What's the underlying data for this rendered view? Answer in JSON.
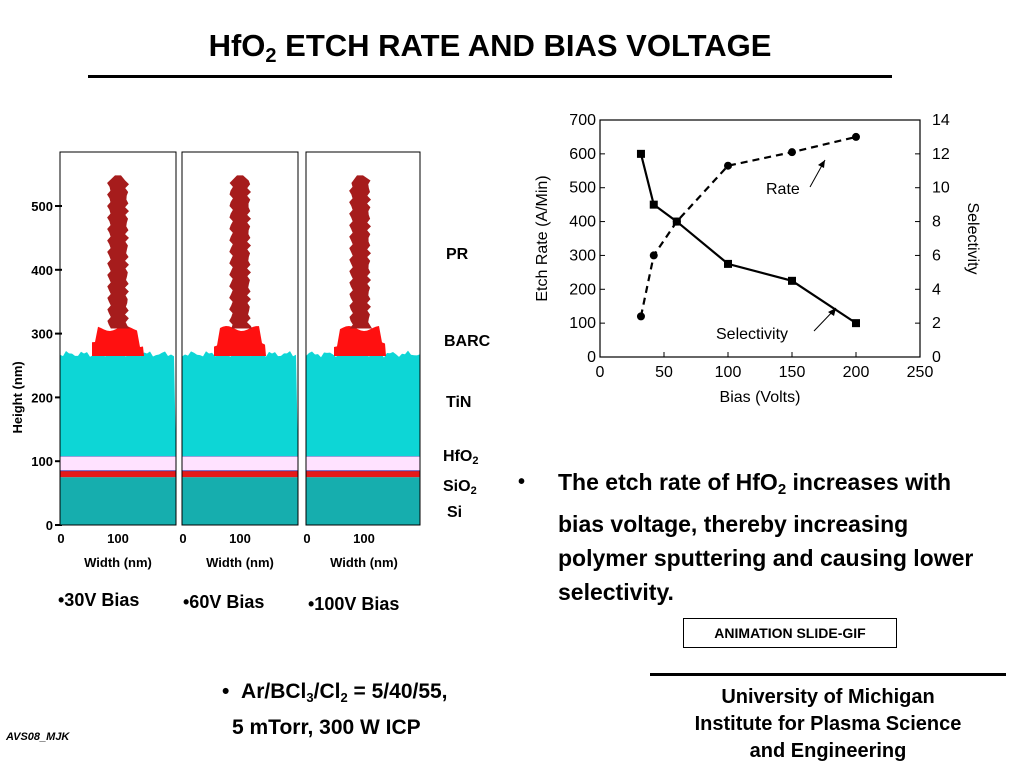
{
  "title": {
    "pre": "HfO",
    "sub": "2",
    "post": " ETCH RATE AND BIAS VOLTAGE"
  },
  "profiles": {
    "ylabel": "Height (nm)",
    "xlabel": "Width (nm)",
    "y_ticks": [
      "500",
      "400",
      "300",
      "200",
      "100",
      "0"
    ],
    "x_ticks": [
      "0",
      "100"
    ],
    "panels": [
      {
        "bias_label": "•30V Bias"
      },
      {
        "bias_label": "•60V Bias"
      },
      {
        "bias_label": "•100V Bias"
      }
    ],
    "layers": [
      {
        "label": "PR",
        "sub": ""
      },
      {
        "label": "BARC",
        "sub": ""
      },
      {
        "label": "TiN",
        "sub": ""
      },
      {
        "label": "HfO",
        "sub": "2"
      },
      {
        "label": "SiO",
        "sub": "2"
      },
      {
        "label": "Si",
        "sub": ""
      }
    ],
    "colors": {
      "pr": "#a61c1c",
      "barc": "#ff1010",
      "tin": "#0dd6d6",
      "hfo2": "#ffe2ff",
      "sio2": "#e51a1a",
      "si": "#16aeae"
    }
  },
  "chart_data": {
    "type": "line",
    "xlabel": "Bias (Volts)",
    "ylabel": "Etch Rate (A/Min)",
    "y2label": "Selectivity",
    "xlim": [
      0,
      250
    ],
    "ylim": [
      0,
      700
    ],
    "y2lim": [
      0,
      14
    ],
    "x_ticks": [
      0,
      50,
      100,
      150,
      200,
      250
    ],
    "y_ticks": [
      0,
      100,
      200,
      300,
      400,
      500,
      600,
      700
    ],
    "y2_ticks": [
      0,
      2,
      4,
      6,
      8,
      10,
      12,
      14
    ],
    "grid": false,
    "series": [
      {
        "name": "Rate",
        "axis": "left",
        "style": "dashed",
        "marker": "circle",
        "x": [
          32,
          42,
          60,
          100,
          150,
          200
        ],
        "values": [
          120,
          300,
          400,
          565,
          605,
          650
        ]
      },
      {
        "name": "Selectivity",
        "axis": "right",
        "style": "solid",
        "marker": "square",
        "x": [
          32,
          42,
          60,
          100,
          150,
          200
        ],
        "values": [
          12.0,
          9.0,
          8.0,
          5.5,
          4.5,
          2.0
        ]
      }
    ]
  },
  "bullet1": {
    "dot": "•",
    "pre": "The etch rate of HfO",
    "sub": "2",
    "post": " increases with bias voltage, thereby increasing polymer sputtering and causing lower selectivity."
  },
  "animation_label": "ANIMATION SLIDE-GIF",
  "bullet2": {
    "dot": "•",
    "a": "Ar/BCl",
    "s1": "3",
    "b": "/Cl",
    "s2": "2",
    "c": " = 5/40/55,",
    "line2": "5 mTorr, 300 W ICP"
  },
  "university": {
    "line1": "University of Michigan",
    "line2": "Institute for Plasma Science",
    "line3": "and Engineering"
  },
  "footer": "AVS08_MJK"
}
